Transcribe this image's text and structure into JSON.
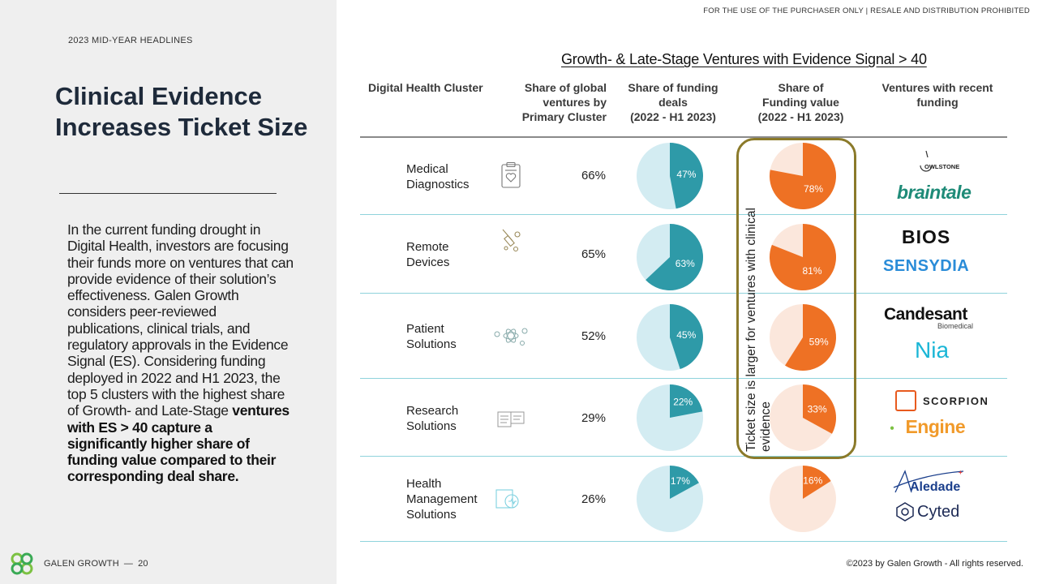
{
  "header": {
    "kicker": "2023 MID-YEAR HEADLINES",
    "title": "Clinical Evidence Increases Ticket Size",
    "disclaimer": "FOR THE USE OF THE PURCHASER ONLY | RESALE AND DISTRIBUTION PROHIBITED"
  },
  "body": {
    "text": "In the current funding drought in Digital Health, investors are focusing their funds more on ventures that can provide evidence of their solution’s effectiveness. Galen Growth considers peer-reviewed publications, clinical trials, and regulatory approvals in the Evidence Signal (ES). Considering funding deployed in 2022 and H1 2023, the top 5 clusters with the highest share of Growth- and Late-Stage",
    "bold": "ventures with ES > 40 capture a significantly higher share of funding value compared to their corresponding deal share."
  },
  "footer": {
    "brand": "GALEN GROWTH",
    "separator": "—",
    "page": "20",
    "copyright": "©2023 by Galen Growth  - All rights reserved."
  },
  "table": {
    "title": "Growth- & Late-Stage Ventures with Evidence Signal > 40",
    "columns": {
      "cluster": [
        "Digital Health Cluster"
      ],
      "share": [
        "Share of global",
        "ventures by",
        "Primary Cluster"
      ],
      "deals": [
        "Share of funding",
        "deals",
        "(2022 - H1 2023)"
      ],
      "value": [
        "Share of",
        "Funding value",
        "(2022 - H1 2023)"
      ],
      "ventures": [
        "Ventures with recent",
        "funding"
      ]
    },
    "highlight_note": "Ticket size is larger for ventures with clinical evidence",
    "rows": [
      {
        "cluster": [
          "Medical",
          "Diagnostics"
        ],
        "icon": "clipboard-heart-icon",
        "share": "66%",
        "deals_label": "47%",
        "value_label": "78%",
        "logos": [
          "OWLSTONE",
          "braintale"
        ]
      },
      {
        "cluster": [
          "Remote",
          "Devices"
        ],
        "icon": "syringe-pills-icon",
        "share": "65%",
        "deals_label": "63%",
        "value_label": "81%",
        "logos": [
          "BIOS",
          "SENSYDIA"
        ]
      },
      {
        "cluster": [
          "Patient",
          "Solutions"
        ],
        "icon": "molecule-icon",
        "share": "52%",
        "deals_label": "45%",
        "value_label": "59%",
        "logos": [
          "Candesant",
          "Biomedical",
          "Nia"
        ]
      },
      {
        "cluster": [
          "Research",
          "Solutions"
        ],
        "icon": "research-screen-icon",
        "share": "29%",
        "deals_label": "22%",
        "value_label": "33%",
        "logos": [
          "SCORPION",
          "Engine"
        ]
      },
      {
        "cluster": [
          "Health",
          "Management",
          "Solutions"
        ],
        "icon": "health-management-icon",
        "share": "26%",
        "deals_label": "17%",
        "value_label": "16%",
        "logos": [
          "Aledade",
          "Cyted"
        ]
      }
    ]
  },
  "chart_data": [
    {
      "type": "pie",
      "title": "Share of funding deals (2022 - H1 2023)",
      "categories": [
        "Medical Diagnostics",
        "Remote Devices",
        "Patient Solutions",
        "Research Solutions",
        "Health Management Solutions"
      ],
      "values": [
        47,
        63,
        45,
        22,
        17
      ]
    },
    {
      "type": "pie",
      "title": "Share of Funding value (2022 - H1 2023)",
      "categories": [
        "Medical Diagnostics",
        "Remote Devices",
        "Patient Solutions",
        "Research Solutions",
        "Health Management Solutions"
      ],
      "values": [
        78,
        81,
        59,
        33,
        16
      ]
    }
  ],
  "colors": {
    "teal": "#2e9aa8",
    "teal_light": "#d3ecf2",
    "orange": "#ee7124",
    "orange_light": "#fbe7dc",
    "highlight_border": "#8b7a2a",
    "row_divider": "#8fd3dc"
  }
}
